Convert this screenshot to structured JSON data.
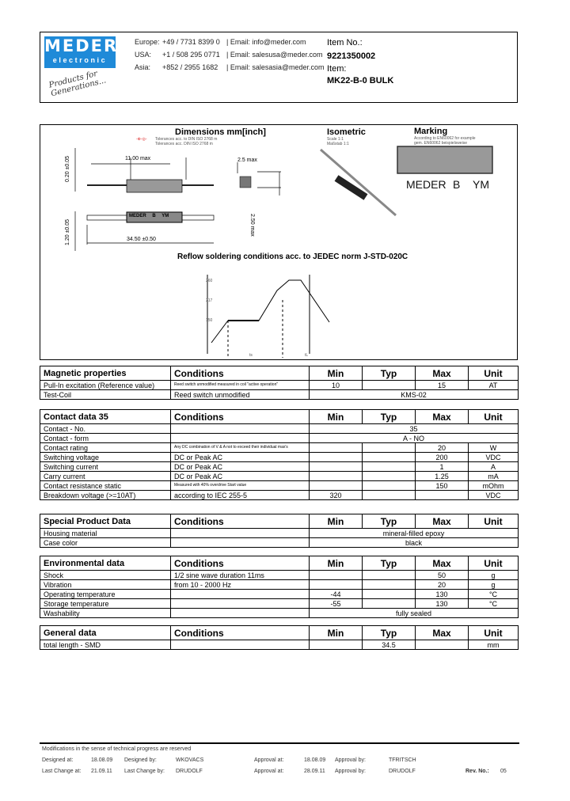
{
  "header": {
    "logo": {
      "line1": "MEDER",
      "line2": "electronic",
      "slogan": "Products for Generations..."
    },
    "brand_color": "#1f8ad8",
    "contacts": [
      {
        "region": "Europe:",
        "phone": "+49 / 7731 8399 0",
        "email": "| Email: info@meder.com"
      },
      {
        "region": "USA:",
        "phone": "+1 / 508 295 0771",
        "email": "| Email: salesusa@meder.com"
      },
      {
        "region": "Asia:",
        "phone": "+852 / 2955 1682",
        "email": "| Email: salesasia@meder.com"
      }
    ],
    "item_no_label": "Item No.:",
    "item_no": "9221350002",
    "item_label": "Item:",
    "item": "MK22-B-0 BULK"
  },
  "drawing": {
    "dimensions_title": "Dimensions mm[inch]",
    "tolerance_note1": "Tolerances acc. to DIN ISO 2768 m",
    "tolerance_note2": "Tolerances acc. DIN ISO 2768 m",
    "dim_length_body": "11.00 max",
    "dim_width": "2.5 max",
    "dim_height": "2.50 max",
    "dim_total": "34.50 ±0.50",
    "dim_left_top": "0.20 ±0.05",
    "dim_left_bottom": "1.20 ±0.05",
    "body_marking": "MEDER B YM",
    "isometric_title": "Isometric",
    "isometric_note1": "Scale 1:1",
    "isometric_note2": "Maßstab 1:1",
    "marking_title": "Marking",
    "marking_note1": "According to EN60062 for example",
    "marking_note2": "gem. EN60062 beispielsweise",
    "marking_text": {
      "a": "MEDER",
      "b": "B",
      "c": "YM"
    },
    "reflow_title": "Reflow soldering conditions acc. to JEDEC norm J-STD-020C",
    "reflow_labels": [
      "260",
      "217",
      "150",
      "",
      "",
      "",
      "",
      "ts",
      "tL"
    ]
  },
  "tables": [
    {
      "title": "Magnetic properties",
      "cond": "Conditions",
      "min": "Min",
      "typ": "Typ",
      "max": "Max",
      "unit": "Unit",
      "top": 462,
      "rows": [
        {
          "label": "Pull-In excitation (Reference value)",
          "cond": "Reed switch unmodified measured in coil \"active operation\"",
          "tiny": true,
          "min": "10",
          "typ": "",
          "max": "15",
          "unit": "AT"
        },
        {
          "label": "Test-Coil",
          "cond": "Reed switch unmodified",
          "span": "KMS-02"
        }
      ]
    },
    {
      "title": "Contact data  35",
      "cond": "Conditions",
      "min": "Min",
      "typ": "Typ",
      "max": "Max",
      "unit": "Unit",
      "top": 517,
      "rows": [
        {
          "label": "Contact - No.",
          "cond": "",
          "span": "35"
        },
        {
          "label": "Contact - form",
          "cond": "",
          "span": "A - NO"
        },
        {
          "label": "Contact rating",
          "cond": "Any DC combination of V & A not to exceed their individual max's",
          "tiny": true,
          "min": "",
          "typ": "",
          "max": "20",
          "unit": "W"
        },
        {
          "label": "Switching voltage",
          "cond": "DC or Peak AC",
          "min": "",
          "typ": "",
          "max": "200",
          "unit": "VDC"
        },
        {
          "label": "Switching current",
          "cond": "DC or Peak AC",
          "min": "",
          "typ": "",
          "max": "1",
          "unit": "A"
        },
        {
          "label": "Carry current",
          "cond": "DC or Peak AC",
          "min": "",
          "typ": "",
          "max": "1.25",
          "unit": "mA"
        },
        {
          "label": "Contact resistance static",
          "cond": "Measured with 40% overdrive Start value",
          "tiny": true,
          "min": "",
          "typ": "",
          "max": "150",
          "unit": "mOhm"
        },
        {
          "label": "Breakdown voltage (>=10AT)",
          "cond": "according to IEC 255-5",
          "min": "320",
          "typ": "",
          "max": "",
          "unit": "VDC"
        }
      ]
    },
    {
      "title": "Special Product Data",
      "cond": "Conditions",
      "min": "Min",
      "typ": "Typ",
      "max": "Max",
      "unit": "Unit",
      "top": 649,
      "rows": [
        {
          "label": "Housing material",
          "cond": "",
          "span": "mineral-filled epoxy"
        },
        {
          "label": "Case color",
          "cond": "",
          "span": "black"
        }
      ]
    },
    {
      "title": "Environmental data",
      "cond": "Conditions",
      "min": "Min",
      "typ": "Typ",
      "max": "Max",
      "unit": "Unit",
      "top": 702,
      "rows": [
        {
          "label": "Shock",
          "cond": "1/2 sine wave duration 11ms",
          "min": "",
          "typ": "",
          "max": "50",
          "unit": "g"
        },
        {
          "label": "Vibration",
          "cond": "from 10 - 2000 Hz",
          "min": "",
          "typ": "",
          "max": "20",
          "unit": "g"
        },
        {
          "label": "Operating temperature",
          "cond": "",
          "min": "-44",
          "typ": "",
          "max": "130",
          "unit": "°C"
        },
        {
          "label": "Storage temperature",
          "cond": "",
          "min": "-55",
          "typ": "",
          "max": "130",
          "unit": "°C"
        },
        {
          "label": "Washability",
          "cond": "",
          "span": "fully sealed"
        }
      ]
    },
    {
      "title": "General data",
      "cond": "Conditions",
      "min": "Min",
      "typ": "Typ",
      "max": "Max",
      "unit": "Unit",
      "top": 790,
      "rows": [
        {
          "label": "total length - SMD",
          "cond": "",
          "min": "",
          "typ": "34.5",
          "max": "",
          "unit": "mm"
        }
      ]
    }
  ],
  "footer": {
    "note": "Modifications in the sense of technical progress are reserved",
    "designed_at_label": "Designed at:",
    "designed_at": "18.08.09",
    "designed_by_label": "Designed by:",
    "designed_by": "WKOVACS",
    "approval_at_label": "Approval at:",
    "approval_at": "18.08.09",
    "approval_by_label": "Approval by:",
    "approval_by": "TFRITSCH",
    "last_change_at_label": "Last Change at:",
    "last_change_at": "21.09.11",
    "last_change_by_label": "Last Change by:",
    "last_change_by": "DRUDOLF",
    "approval2_at_label": "Approval at:",
    "approval2_at": "28.09.11",
    "approval2_by_label": "Approval by:",
    "approval2_by": "DRUDOLF",
    "rev_label": "Rev. No.:",
    "rev": "05"
  }
}
